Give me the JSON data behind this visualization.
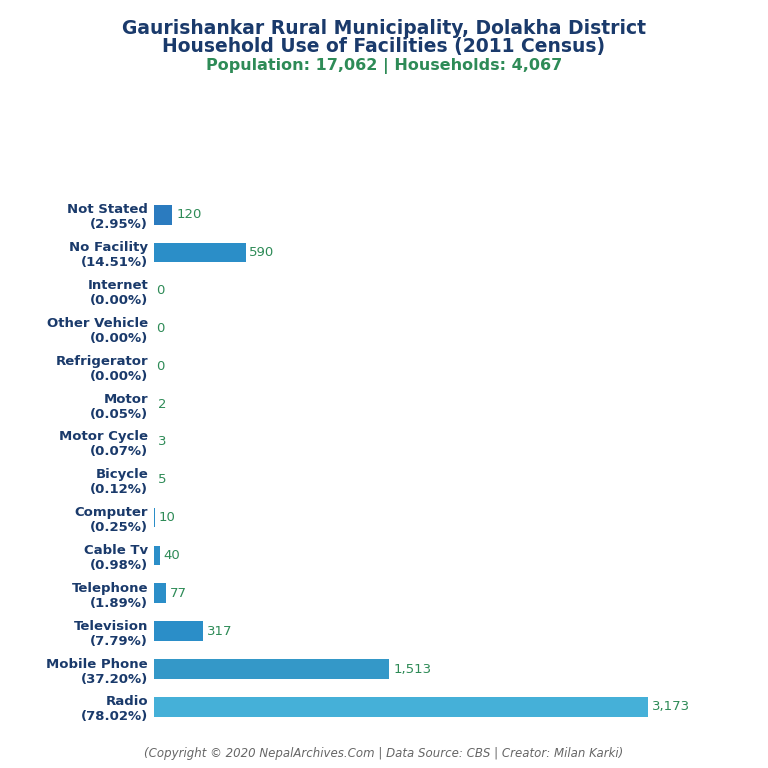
{
  "title_line1": "Gaurishankar Rural Municipality, Dolakha District",
  "title_line2": "Household Use of Facilities (2011 Census)",
  "subtitle": "Population: 17,062 | Households: 4,067",
  "copyright": "(Copyright © 2020 NepalArchives.Com | Data Source: CBS | Creator: Milan Karki)",
  "categories": [
    "Not Stated\n(2.95%)",
    "No Facility\n(14.51%)",
    "Internet\n(0.00%)",
    "Other Vehicle\n(0.00%)",
    "Refrigerator\n(0.00%)",
    "Motor\n(0.05%)",
    "Motor Cycle\n(0.07%)",
    "Bicycle\n(0.12%)",
    "Computer\n(0.25%)",
    "Cable Tv\n(0.98%)",
    "Telephone\n(1.89%)",
    "Television\n(7.79%)",
    "Mobile Phone\n(37.20%)",
    "Radio\n(78.02%)"
  ],
  "values": [
    120,
    590,
    0,
    0,
    0,
    2,
    3,
    5,
    10,
    40,
    77,
    317,
    1513,
    3173
  ],
  "bar_colors": [
    "#2b7bbf",
    "#2b8ec8",
    "#2b8ec8",
    "#2b8ec8",
    "#2b8ec8",
    "#2b8ec8",
    "#2b8ec8",
    "#2b8ec8",
    "#2b8ec8",
    "#2b8ec8",
    "#2b8ec8",
    "#2b8ec8",
    "#3498c8",
    "#45b0d8"
  ],
  "title_color": "#1a3a6b",
  "subtitle_color": "#2e8b57",
  "value_color": "#2e8b57",
  "label_color": "#1a3a6b",
  "copyright_color": "#666666",
  "background_color": "#ffffff",
  "title_fontsize": 13.5,
  "subtitle_fontsize": 11.5,
  "label_fontsize": 9.5,
  "value_fontsize": 9.5,
  "copyright_fontsize": 8.5,
  "xlim": [
    0,
    3550
  ],
  "bar_height": 0.52
}
